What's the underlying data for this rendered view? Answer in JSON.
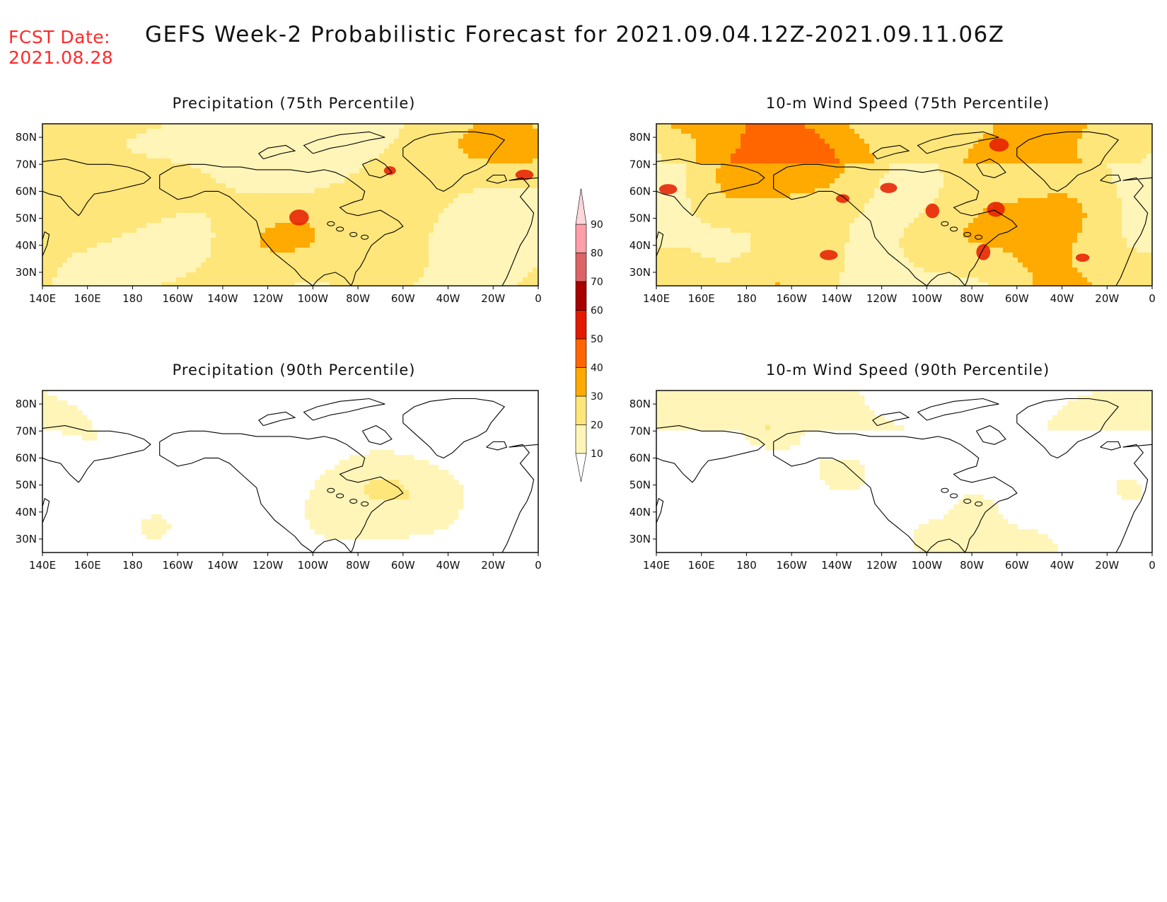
{
  "header": {
    "fcst_label": "FCST Date:",
    "fcst_date": "2021.08.28",
    "title": "GEFS Week-2 Probabilistic Forecast for 2021.09.04.12Z-2021.09.11.06Z"
  },
  "panels": [
    {
      "id": "precip-75",
      "title": "Precipitation (75th Percentile)",
      "intensity": 0.62,
      "seed": 3,
      "deep_spots": 3
    },
    {
      "id": "wind-75",
      "title": "10-m Wind Speed (75th Percentile)",
      "intensity": 0.68,
      "seed": 11,
      "deep_spots": 9
    },
    {
      "id": "precip-90",
      "title": "Precipitation (90th Percentile)",
      "intensity": 0.22,
      "seed": 23,
      "deep_spots": 0
    },
    {
      "id": "wind-90",
      "title": "10-m Wind Speed (90th Percentile)",
      "intensity": 0.2,
      "seed": 37,
      "deep_spots": 0
    }
  ],
  "axes": {
    "x_ticks": [
      "140E",
      "160E",
      "180",
      "160W",
      "140W",
      "120W",
      "100W",
      "80W",
      "60W",
      "40W",
      "20W",
      "0"
    ],
    "y_ticks": [
      "80N",
      "70N",
      "60N",
      "50N",
      "40N",
      "30N"
    ],
    "lon_range": [
      140,
      360
    ],
    "lat_range": [
      25,
      85
    ]
  },
  "colorbar": {
    "levels": [
      10,
      20,
      30,
      40,
      50,
      60,
      70,
      80,
      90
    ],
    "labels": [
      "10",
      "20",
      "30",
      "40",
      "50",
      "60",
      "70",
      "80",
      "90"
    ],
    "colors": [
      "#fff5b8",
      "#ffe67a",
      "#ffaa00",
      "#ff6600",
      "#e41a00",
      "#a80000",
      "#dd6464",
      "#ff9fa8",
      "#ffd6da"
    ]
  }
}
